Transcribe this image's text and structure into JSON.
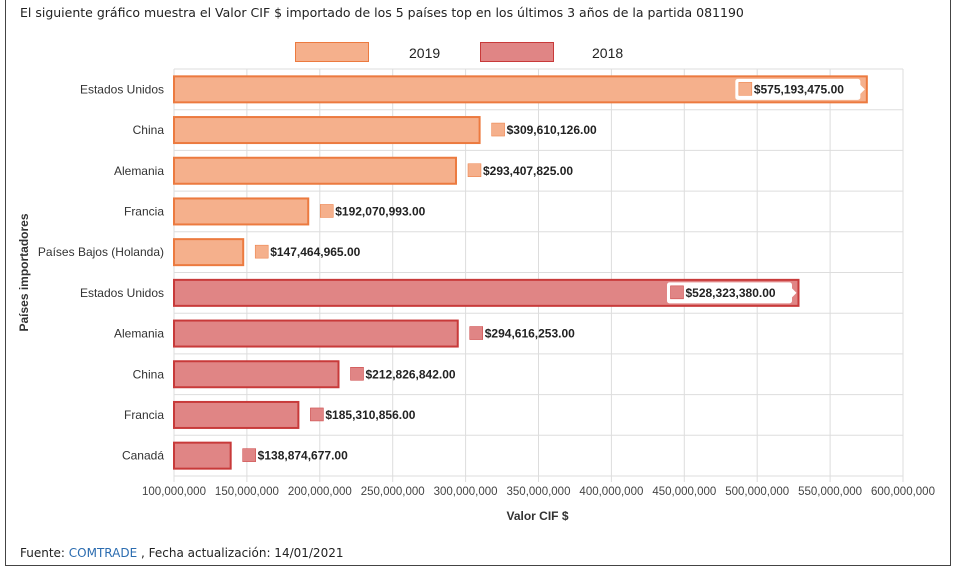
{
  "heading": "El siguiente gráfico muestra el Valor CIF $ importado de los 5 países top en los últimos 3 años de la partida 081190",
  "footer": {
    "prefix": "Fuente: ",
    "source_link": "COMTRADE",
    "suffix": " , Fecha actualización: 14/01/2021"
  },
  "colors": {
    "2019_fill": "#f5b08c",
    "2019_stroke": "#ec7a3f",
    "2018_fill": "#e08585",
    "2018_stroke": "#c83a3a",
    "grid": "#dddddd",
    "text": "#333333"
  },
  "chart_data": {
    "type": "bar",
    "orientation": "horizontal",
    "xlabel": "Valor CIF $",
    "ylabel": "Países importadores",
    "xlim": [
      100000000,
      600000000
    ],
    "xticks": [
      "100,000,000",
      "150,000,000",
      "200,000,000",
      "250,000,000",
      "300,000,000",
      "350,000,000",
      "400,000,000",
      "450,000,000",
      "500,000,000",
      "550,000,000",
      "600,000,000"
    ],
    "grid": true,
    "legend_position": "top",
    "series": [
      {
        "name": "2019",
        "categories": [
          "Estados Unidos",
          "China",
          "Alemania",
          "Francia",
          "Países Bajos (Holanda)"
        ],
        "values": [
          575193475,
          309610126,
          293407825,
          192070993,
          147464965
        ],
        "labels": [
          "$575,193,475.00",
          "$309,610,126.00",
          "$293,407,825.00",
          "$192,070,993.00",
          "$147,464,965.00"
        ]
      },
      {
        "name": "2018",
        "categories": [
          "Estados Unidos",
          "Alemania",
          "China",
          "Francia",
          "Canadá"
        ],
        "values": [
          528323380,
          294616253,
          212826842,
          185310856,
          138874677
        ],
        "labels": [
          "$528,323,380.00",
          "$294,616,253.00",
          "$212,826,842.00",
          "$185,310,856.00",
          "$138,874,677.00"
        ]
      }
    ]
  }
}
